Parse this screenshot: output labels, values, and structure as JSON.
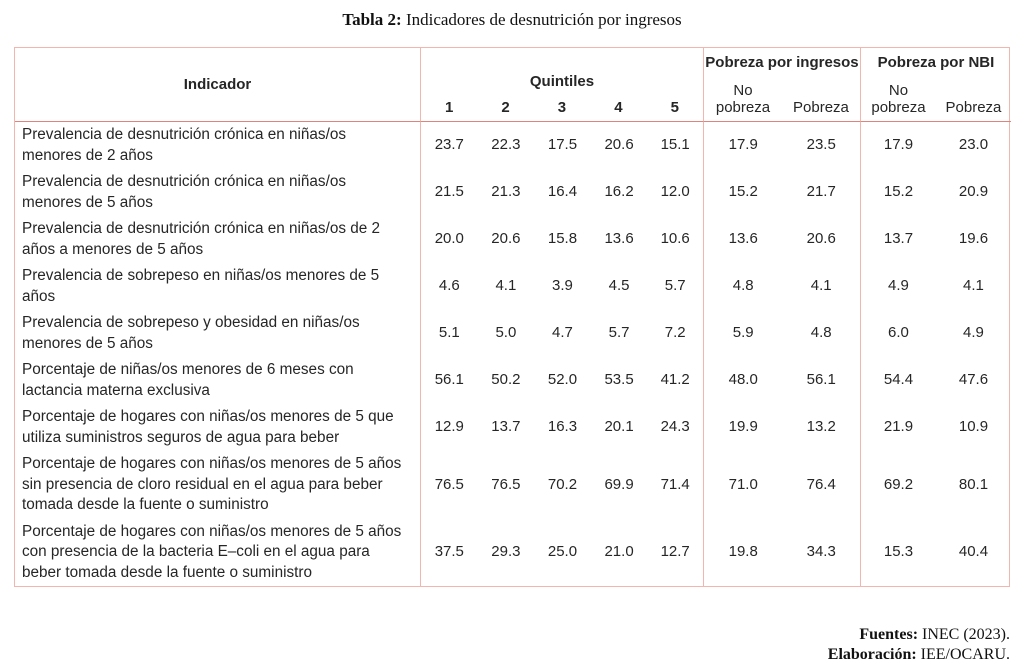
{
  "title": {
    "label": "Tabla 2:",
    "text": "Indicadores de desnutrición por ingresos"
  },
  "table": {
    "col_indicator": "Indicador",
    "group_quintiles": "Quintiles",
    "group_ingresos": "Pobreza por ingresos",
    "group_nbi": "Pobreza por NBI",
    "quintile_cols": [
      "1",
      "2",
      "3",
      "4",
      "5"
    ],
    "sub_no_pobreza": "No pobreza",
    "sub_pobreza": "Pobreza",
    "rows": [
      {
        "indicator": "Prevalencia de desnutrición crónica en niñas/os menores de 2 años",
        "quintiles": [
          "23.7",
          "22.3",
          "17.5",
          "20.6",
          "15.1"
        ],
        "ingresos": [
          "17.9",
          "23.5"
        ],
        "nbi": [
          "17.9",
          "23.0"
        ]
      },
      {
        "indicator": "Prevalencia de desnutrición crónica en niñas/os menores de 5 años",
        "quintiles": [
          "21.5",
          "21.3",
          "16.4",
          "16.2",
          "12.0"
        ],
        "ingresos": [
          "15.2",
          "21.7"
        ],
        "nbi": [
          "15.2",
          "20.9"
        ]
      },
      {
        "indicator": "Prevalencia de desnutrición crónica en niñas/os de 2 años a menores de 5 años",
        "quintiles": [
          "20.0",
          "20.6",
          "15.8",
          "13.6",
          "10.6"
        ],
        "ingresos": [
          "13.6",
          "20.6"
        ],
        "nbi": [
          "13.7",
          "19.6"
        ]
      },
      {
        "indicator": "Prevalencia de sobrepeso en niñas/os menores de 5 años",
        "quintiles": [
          "4.6",
          "4.1",
          "3.9",
          "4.5",
          "5.7"
        ],
        "ingresos": [
          "4.8",
          "4.1"
        ],
        "nbi": [
          "4.9",
          "4.1"
        ]
      },
      {
        "indicator": "Prevalencia de sobrepeso y obesidad en niñas/os menores de 5 años",
        "quintiles": [
          "5.1",
          "5.0",
          "4.7",
          "5.7",
          "7.2"
        ],
        "ingresos": [
          "5.9",
          "4.8"
        ],
        "nbi": [
          "6.0",
          "4.9"
        ]
      },
      {
        "indicator": "Porcentaje de niñas/os menores de 6 meses con lactancia materna exclusiva",
        "quintiles": [
          "56.1",
          "50.2",
          "52.0",
          "53.5",
          "41.2"
        ],
        "ingresos": [
          "48.0",
          "56.1"
        ],
        "nbi": [
          "54.4",
          "47.6"
        ]
      },
      {
        "indicator": "Porcentaje de hogares con niñas/os menores de 5 que utiliza suministros seguros de agua para beber",
        "quintiles": [
          "12.9",
          "13.7",
          "16.3",
          "20.1",
          "24.3"
        ],
        "ingresos": [
          "19.9",
          "13.2"
        ],
        "nbi": [
          "21.9",
          "10.9"
        ]
      },
      {
        "indicator": "Porcentaje de hogares con niñas/os menores de 5 años sin presencia de cloro residual en el agua para beber tomada desde la fuente o suministro",
        "quintiles": [
          "76.5",
          "76.5",
          "70.2",
          "69.9",
          "71.4"
        ],
        "ingresos": [
          "71.0",
          "76.4"
        ],
        "nbi": [
          "69.2",
          "80.1"
        ]
      },
      {
        "indicator": "Porcentaje de hogares con niñas/os menores de 5 años con presencia de la bacteria E–coli en el agua para beber tomada desde la fuente o suministro",
        "quintiles": [
          "37.5",
          "29.3",
          "25.0",
          "21.0",
          "12.7"
        ],
        "ingresos": [
          "19.8",
          "34.3"
        ],
        "nbi": [
          "15.3",
          "40.4"
        ]
      }
    ]
  },
  "footer": {
    "sources_label": "Fuentes:",
    "sources_text": "INEC (2023).",
    "elaboration_label": "Elaboración:",
    "elaboration_text": "IEE/OCARU."
  },
  "colors": {
    "border": "#f2b6af",
    "header_line": "#e0837a",
    "text": "#262626"
  }
}
